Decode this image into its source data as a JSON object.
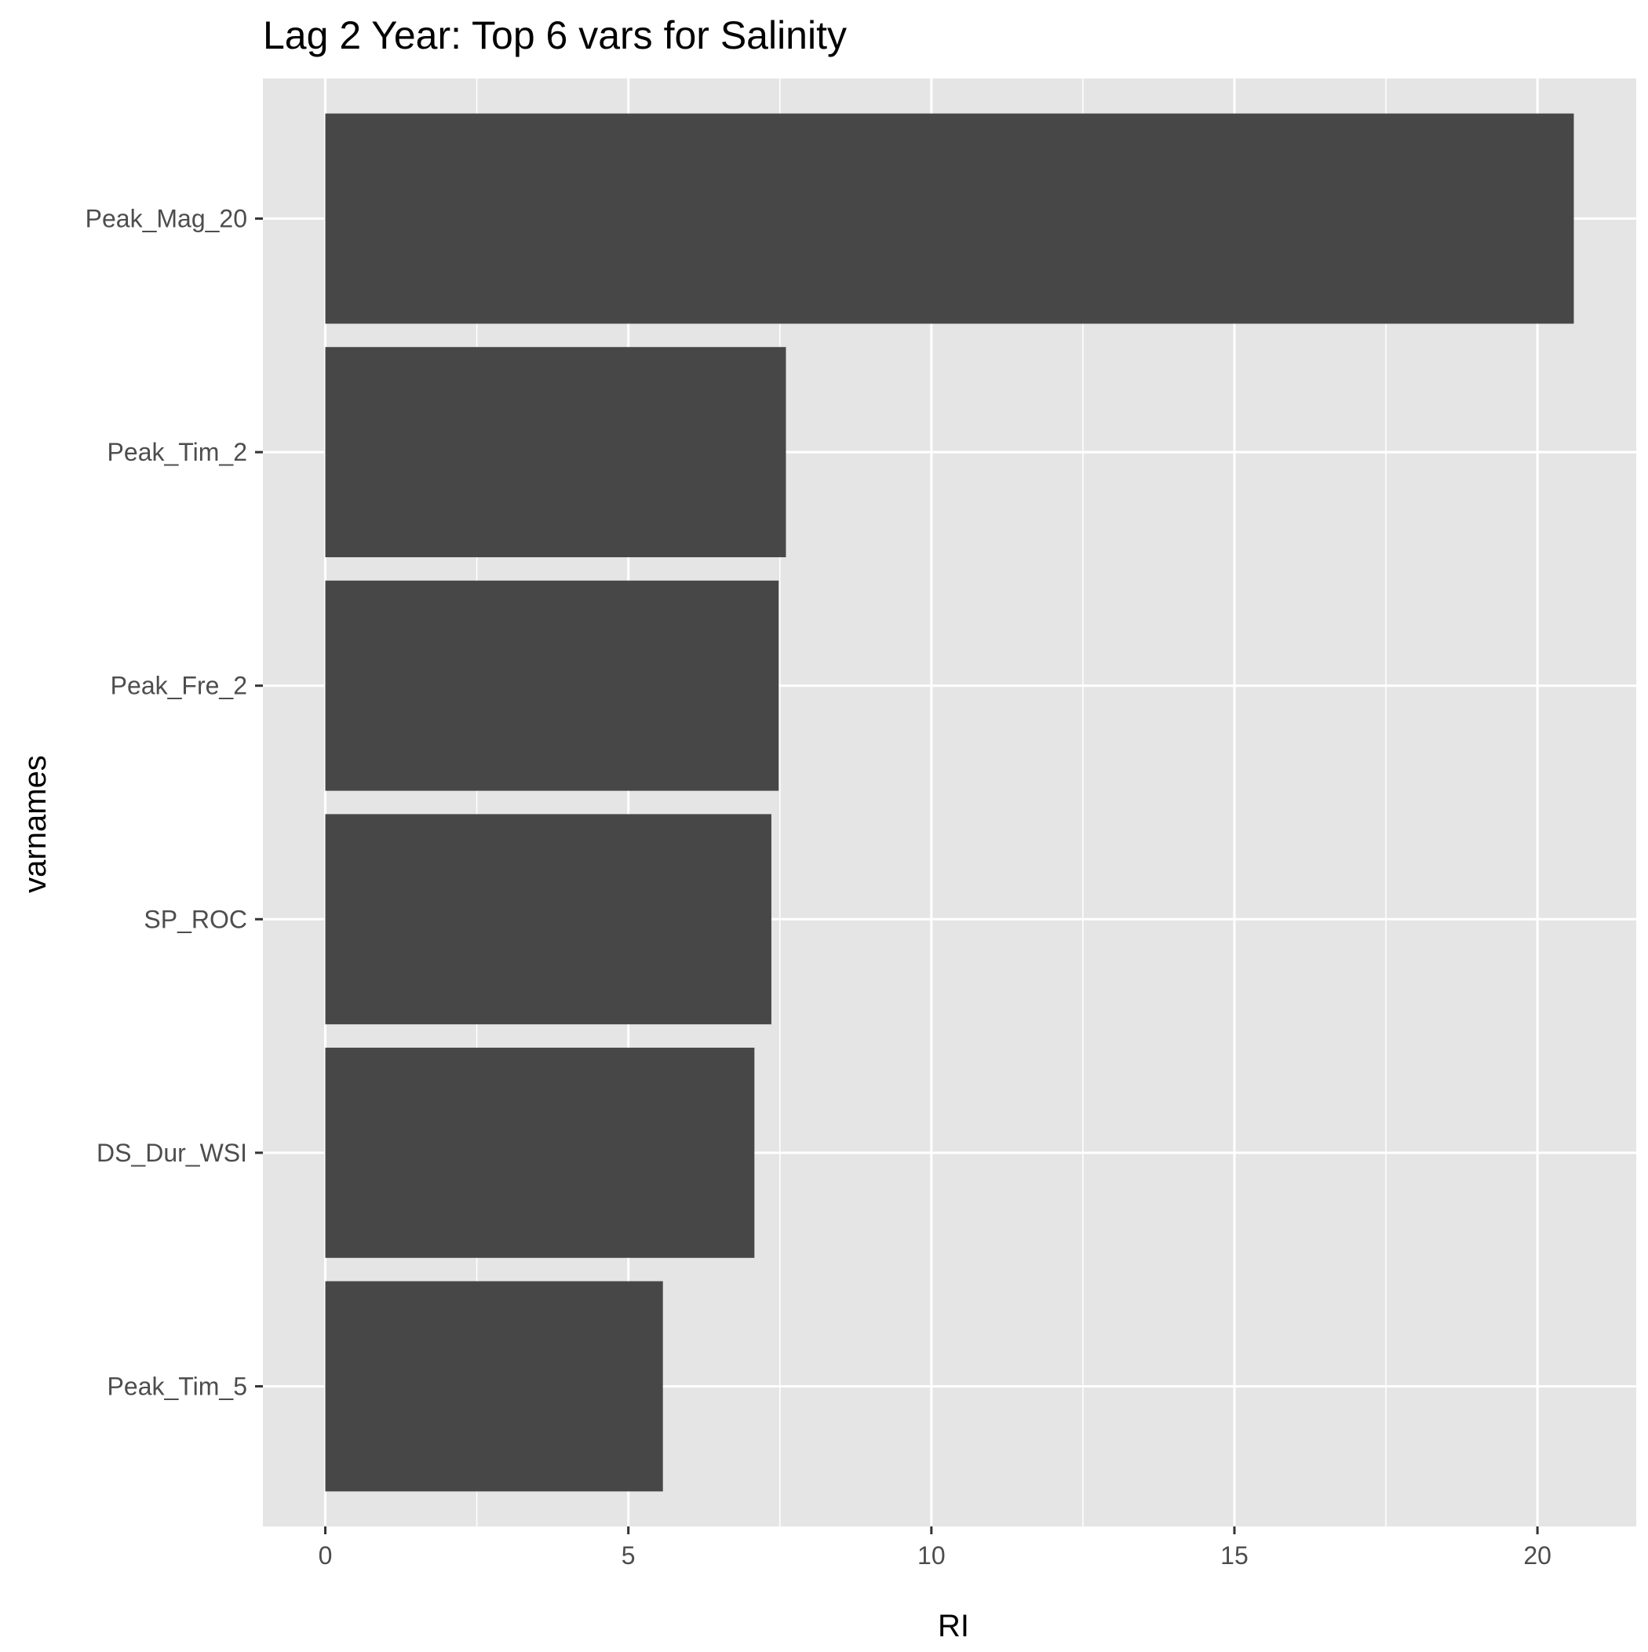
{
  "chart_data": {
    "type": "bar",
    "orientation": "horizontal",
    "title": "Lag 2 Year: Top 6 vars for Salinity",
    "xlabel": "RI",
    "ylabel": "varnames",
    "categories": [
      "Peak_Mag_20",
      "Peak_Tim_2",
      "Peak_Fre_2",
      "SP_ROC",
      "DS_Dur_WSI",
      "Peak_Tim_5"
    ],
    "values": [
      20.6,
      7.6,
      7.48,
      7.36,
      7.08,
      5.57
    ],
    "xlim": [
      -1.03,
      21.63
    ],
    "xticks": [
      0,
      5,
      10,
      15,
      20
    ],
    "xtick_labels": [
      "0",
      "5",
      "10",
      "15",
      "20"
    ],
    "grid": true,
    "colors": {
      "panel": "#e5e5e5",
      "grid": "#ffffff",
      "bar": "#474747",
      "tick": "#333333",
      "tick_label": "#4d4d4d"
    }
  }
}
